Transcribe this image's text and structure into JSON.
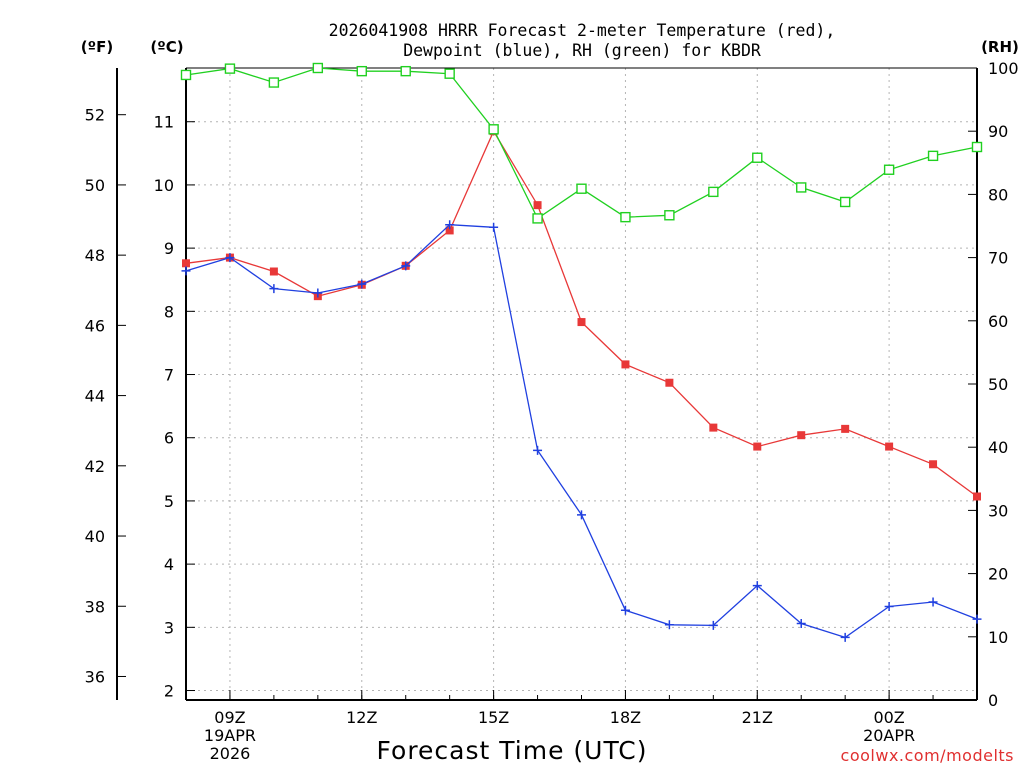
{
  "chart_data": {
    "type": "line",
    "title_line1": "2026041908 HRRR Forecast 2-meter Temperature (red),",
    "title_line2": "Dewpoint (blue), RH (green) for KBDR",
    "xlabel": "Forecast Time (UTC)",
    "credit": "coolwx.com/modelts",
    "unit_f": "(ºF)",
    "unit_c": "(ºC)",
    "unit_rh": "(RH)",
    "x_hours": [
      8,
      9,
      10,
      11,
      12,
      13,
      14,
      15,
      16,
      17,
      18,
      19,
      20,
      21,
      22,
      23,
      24,
      25,
      26
    ],
    "xlim": [
      8,
      26
    ],
    "x_ticks": [
      {
        "hour": 9,
        "label": "09Z",
        "sub1": "19APR",
        "sub2": "2026"
      },
      {
        "hour": 12,
        "label": "12Z",
        "sub1": "",
        "sub2": ""
      },
      {
        "hour": 15,
        "label": "15Z",
        "sub1": "",
        "sub2": ""
      },
      {
        "hour": 18,
        "label": "18Z",
        "sub1": "",
        "sub2": ""
      },
      {
        "hour": 21,
        "label": "21Z",
        "sub1": "",
        "sub2": ""
      },
      {
        "hour": 24,
        "label": "00Z",
        "sub1": "20APR",
        "sub2": ""
      }
    ],
    "celsius_axis": {
      "min": 1.85,
      "max": 11.85,
      "ticks": [
        "2",
        "3",
        "4",
        "5",
        "6",
        "7",
        "8",
        "9",
        "10",
        "11"
      ]
    },
    "fahrenheit_ticks": [
      "36",
      "38",
      "40",
      "42",
      "44",
      "46",
      "48",
      "50",
      "52"
    ],
    "rh_axis": {
      "min": 0,
      "max": 100,
      "ticks": [
        "0",
        "10",
        "20",
        "30",
        "40",
        "50",
        "60",
        "70",
        "80",
        "90",
        "100"
      ]
    },
    "series": [
      {
        "name": "Temperature",
        "unit": "C",
        "color": "#e83838",
        "values": [
          8.76,
          8.85,
          8.63,
          8.24,
          8.42,
          8.72,
          9.28,
          10.85,
          9.68,
          7.83,
          7.16,
          6.87,
          6.16,
          5.86,
          6.04,
          6.14,
          5.86,
          5.58,
          5.07
        ]
      },
      {
        "name": "Dewpoint",
        "unit": "C",
        "color": "#2040e0",
        "values": [
          8.64,
          8.85,
          8.36,
          8.29,
          8.43,
          8.72,
          9.37,
          9.33,
          5.8,
          4.78,
          3.27,
          3.04,
          3.03,
          3.66,
          3.06,
          2.84,
          3.33,
          3.4,
          3.13
        ]
      },
      {
        "name": "RH",
        "unit": "%",
        "color": "#20d020",
        "values": [
          98.9,
          99.9,
          97.7,
          100.0,
          99.5,
          99.5,
          99.1,
          90.3,
          76.2,
          80.9,
          76.4,
          76.7,
          80.4,
          85.8,
          81.1,
          78.8,
          83.9,
          86.1,
          87.5
        ]
      }
    ]
  }
}
